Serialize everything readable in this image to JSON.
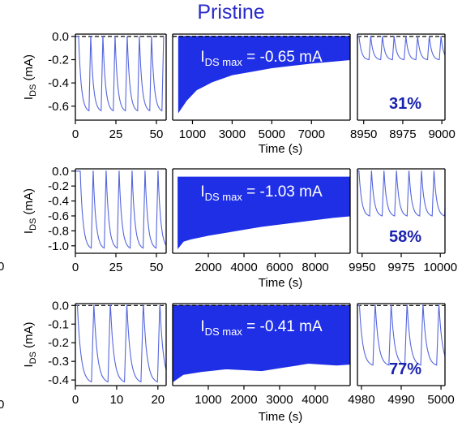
{
  "page": {
    "title": "Pristine",
    "left_cutoff_labels": [
      "0",
      "0"
    ]
  },
  "colors": {
    "series": "#1f2fe6",
    "series_light": "#5566dd",
    "title": "#2a2acc",
    "percent": "#1a22b0",
    "axis": "#000000",
    "baseline": "#000000"
  },
  "chart_data": [
    {
      "type": "line",
      "row": 1,
      "ylabel": "I_DS (mA)",
      "ylabel_main": "I",
      "ylabel_sub": "DS",
      "ylabel_unit": "(mA)",
      "xlabel": "Time (s)",
      "ylim": [
        -0.72,
        0.02
      ],
      "yticks": [
        0.0,
        -0.2,
        -0.4,
        -0.6
      ],
      "ytick_labels": [
        "0.0",
        "-0.2",
        "-0.4",
        "-0.6"
      ],
      "baseline_y": 0.0,
      "grid": false,
      "annotation": {
        "main": "I",
        "sub": "DS max",
        "rest": " = -0.65 mA"
      },
      "retention_label": "31%",
      "panels": [
        {
          "xlim": [
            0,
            56
          ],
          "xticks": [
            0,
            25,
            50
          ],
          "xtick_labels": [
            "0",
            "25",
            "50"
          ],
          "pulse_period": 7.5,
          "pulse_phase": 2,
          "pulse_count": 7,
          "peak": -0.64,
          "rise_fraction": 0.15
        },
        {
          "fill_band": true,
          "xlim": [
            0,
            8950
          ],
          "xticks": [
            1000,
            3000,
            5000,
            7000
          ],
          "xtick_labels": [
            "1000",
            "3000",
            "5000",
            "7000"
          ],
          "envelope_x": [
            300,
            700,
            1200,
            2000,
            3000,
            4000,
            5000,
            6000,
            7000,
            8000,
            8950
          ],
          "envelope_min": [
            -0.65,
            -0.55,
            -0.46,
            -0.39,
            -0.33,
            -0.3,
            -0.27,
            -0.25,
            -0.23,
            -0.215,
            -0.2
          ],
          "envelope_top": 0.0
        },
        {
          "xlim": [
            8946,
            9002
          ],
          "xticks": [
            8950,
            8975,
            9000
          ],
          "xtick_labels": [
            "8950",
            "8975",
            "9000"
          ],
          "pulse_period": 7.5,
          "pulse_phase": 8947,
          "pulse_count": 8,
          "peak": -0.2,
          "rise_fraction": 0.15
        }
      ]
    },
    {
      "type": "line",
      "row": 2,
      "ylabel": "I_DS (mA)",
      "ylabel_main": "I",
      "ylabel_sub": "DS",
      "ylabel_unit": "(mA)",
      "xlabel": "Time (s)",
      "ylim": [
        -1.1,
        0.03
      ],
      "yticks": [
        0.0,
        -0.2,
        -0.4,
        -0.6,
        -0.8,
        -1.0
      ],
      "ytick_labels": [
        "0.0",
        "-0.2",
        "-0.4",
        "-0.6",
        "-0.8",
        "-1.0"
      ],
      "baseline_y": null,
      "grid": false,
      "annotation": {
        "main": "I",
        "sub": "DS max",
        "rest": " = -1.03 mA"
      },
      "retention_label": "58%",
      "panels": [
        {
          "xlim": [
            0,
            56
          ],
          "xticks": [
            0,
            25,
            50
          ],
          "xtick_labels": [
            "0",
            "25",
            "50"
          ],
          "pulse_period": 8,
          "pulse_phase": 3,
          "pulse_count": 7,
          "peak": -1.03,
          "rise_fraction": 0.15
        },
        {
          "fill_band": true,
          "xlim": [
            0,
            9950
          ],
          "xticks": [
            2000,
            4000,
            6000,
            8000
          ],
          "xtick_labels": [
            "2000",
            "4000",
            "6000",
            "8000"
          ],
          "envelope_x": [
            300,
            600,
            1000,
            2000,
            3000,
            4000,
            5000,
            6000,
            7000,
            8000,
            9000,
            9950
          ],
          "envelope_min": [
            -1.03,
            -0.94,
            -0.91,
            -0.86,
            -0.82,
            -0.78,
            -0.74,
            -0.71,
            -0.68,
            -0.65,
            -0.62,
            -0.6
          ],
          "envelope_top": -0.08
        },
        {
          "xlim": [
            9947,
            10003
          ],
          "xticks": [
            9950,
            9975,
            10000
          ],
          "xtick_labels": [
            "9950",
            "9975",
            "10000"
          ],
          "pulse_period": 8,
          "pulse_phase": 9948,
          "pulse_count": 7,
          "peak": -0.6,
          "rise_fraction": 0.15
        }
      ]
    },
    {
      "type": "line",
      "row": 3,
      "ylabel": "I_DS (mA)",
      "ylabel_main": "I",
      "ylabel_sub": "DS",
      "ylabel_unit": "(mA)",
      "xlabel": "Time (s)",
      "ylim": [
        -0.43,
        0.01
      ],
      "yticks": [
        0.0,
        -0.1,
        -0.2,
        -0.3,
        -0.4
      ],
      "ytick_labels": [
        "0.0",
        "-0.1",
        "-0.2",
        "-0.3",
        "-0.4"
      ],
      "baseline_y": 0.0,
      "grid": false,
      "annotation": {
        "main": "I",
        "sub": "DS max",
        "rest": " = -0.41 mA"
      },
      "retention_label": "77%",
      "panels": [
        {
          "xlim": [
            0,
            22
          ],
          "xticks": [
            0,
            10,
            20
          ],
          "xtick_labels": [
            "0",
            "10",
            "20"
          ],
          "pulse_period": 4,
          "pulse_phase": 0.5,
          "pulse_count": 6,
          "peak": -0.41,
          "rise_fraction": 0.15
        },
        {
          "fill_band": true,
          "xlim": [
            0,
            4980
          ],
          "xticks": [
            1000,
            2000,
            3000,
            4000
          ],
          "xtick_labels": [
            "1000",
            "2000",
            "3000",
            "4000"
          ],
          "envelope_x": [
            0,
            300,
            800,
            1500,
            2000,
            2500,
            3000,
            3500,
            3800,
            4200,
            4600,
            4980
          ],
          "envelope_min": [
            -0.41,
            -0.37,
            -0.355,
            -0.34,
            -0.345,
            -0.35,
            -0.335,
            -0.32,
            -0.31,
            -0.315,
            -0.32,
            -0.315
          ],
          "envelope_top": 0.0
        },
        {
          "xlim": [
            4979,
            5001
          ],
          "xticks": [
            4980,
            4990,
            5000
          ],
          "xtick_labels": [
            "4980",
            "4990",
            "5000"
          ],
          "pulse_period": 4,
          "pulse_phase": 4979.5,
          "pulse_count": 6,
          "peak": -0.32,
          "rise_fraction": 0.15
        }
      ]
    }
  ]
}
